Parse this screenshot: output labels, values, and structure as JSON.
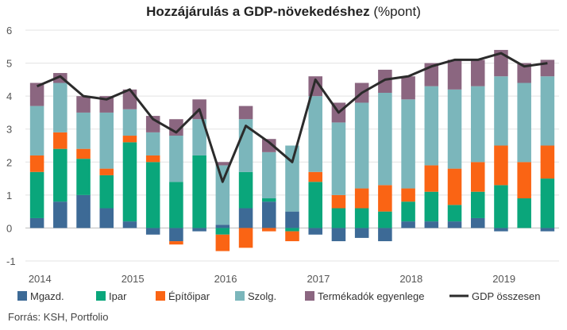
{
  "title_bold": "Hozzájárulás a GDP-növekedéshez",
  "title_unit": "(%pont)",
  "source": "Forrás: KSH, Portfolio",
  "colors": {
    "mgazd": "#3d6a96",
    "ipar": "#0aa67b",
    "epito": "#fa6414",
    "szolg": "#7bb6bb",
    "termek": "#8b6680",
    "gdp": "#2b2b2b"
  },
  "chart_data": {
    "type": "bar",
    "stacked": true,
    "title": "Hozzájárulás a GDP-növekedéshez (%pont)",
    "ylim": [
      -1,
      6
    ],
    "yticks": [
      "-1",
      "0",
      "1",
      "2",
      "3",
      "4",
      "5",
      "6"
    ],
    "x_labels": [
      "2014",
      "2015",
      "2016",
      "2017",
      "2018",
      "2019"
    ],
    "categories": [
      "2014Q1",
      "2014Q2",
      "2014Q3",
      "2014Q4",
      "2015Q1",
      "2015Q2",
      "2015Q3",
      "2015Q4",
      "2016Q1",
      "2016Q2",
      "2016Q3",
      "2016Q4",
      "2017Q1",
      "2017Q2",
      "2017Q3",
      "2017Q4",
      "2018Q1",
      "2018Q2",
      "2018Q3",
      "2018Q4",
      "2019Q1",
      "2019Q2",
      "2019Q3"
    ],
    "series": [
      {
        "name": "Mgazd.",
        "color_key": "mgazd",
        "kind": "bar",
        "values": [
          0.3,
          0.8,
          1.0,
          0.6,
          0.2,
          -0.2,
          -0.4,
          -0.1,
          0.1,
          0.6,
          0.8,
          0.5,
          -0.2,
          -0.4,
          -0.3,
          -0.4,
          0.2,
          0.2,
          0.2,
          0.3,
          -0.1,
          0.0,
          -0.1
        ]
      },
      {
        "name": "Ipar",
        "color_key": "ipar",
        "kind": "bar",
        "values": [
          1.4,
          1.6,
          1.1,
          1.0,
          2.4,
          2.0,
          1.4,
          2.2,
          -0.2,
          1.1,
          0.1,
          -0.1,
          1.4,
          0.6,
          0.6,
          0.5,
          0.6,
          0.9,
          0.5,
          0.8,
          1.3,
          0.9,
          1.5
        ]
      },
      {
        "name": "Építőipar",
        "color_key": "epito",
        "kind": "bar",
        "values": [
          0.5,
          0.5,
          0.3,
          0.2,
          0.2,
          0.2,
          -0.1,
          0.0,
          -0.5,
          -0.6,
          -0.1,
          -0.3,
          0.3,
          0.4,
          0.6,
          0.8,
          0.4,
          0.8,
          1.1,
          0.9,
          1.2,
          1.1,
          1.0
        ]
      },
      {
        "name": "Szolg.",
        "color_key": "szolg",
        "kind": "bar",
        "values": [
          1.5,
          1.5,
          1.1,
          1.7,
          0.8,
          0.7,
          1.4,
          1.1,
          1.8,
          1.6,
          1.4,
          2.0,
          2.3,
          2.2,
          2.6,
          2.8,
          2.7,
          2.4,
          2.4,
          2.3,
          2.1,
          2.4,
          2.1
        ]
      },
      {
        "name": "Termékadók egyenlege",
        "color_key": "termek",
        "kind": "bar",
        "values": [
          0.7,
          0.3,
          0.5,
          0.5,
          0.6,
          0.5,
          0.5,
          0.6,
          0.1,
          0.4,
          0.4,
          0.0,
          0.6,
          0.6,
          0.6,
          0.7,
          0.7,
          0.7,
          0.9,
          0.8,
          0.8,
          0.6,
          0.5
        ]
      },
      {
        "name": "GDP összesen",
        "color_key": "gdp",
        "kind": "line",
        "values": [
          4.3,
          4.6,
          4.0,
          3.9,
          4.2,
          3.3,
          2.9,
          3.6,
          1.4,
          3.1,
          2.6,
          2.0,
          4.5,
          3.5,
          4.1,
          4.5,
          4.6,
          4.9,
          5.1,
          5.1,
          5.3,
          4.9,
          5.0
        ]
      }
    ]
  }
}
